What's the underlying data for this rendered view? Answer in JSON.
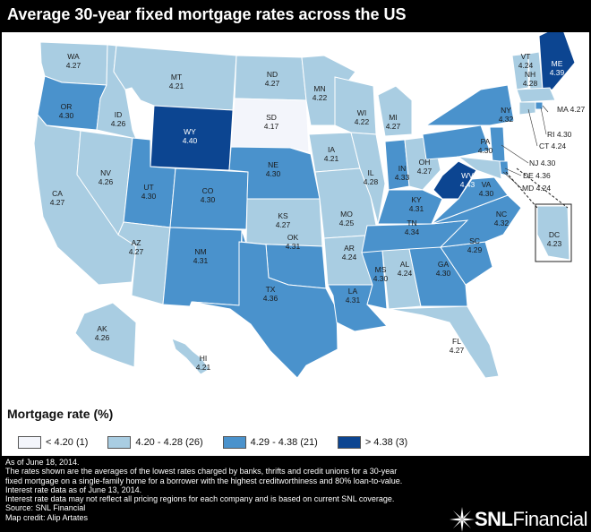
{
  "header": {
    "title": "Average 30-year fixed mortgage rates across the US"
  },
  "colors": {
    "band1": "#f3f5fb",
    "band2": "#a9cde2",
    "band3": "#4a92cc",
    "band4": "#0c4591",
    "state_border": "#ffffff",
    "background": "#000000"
  },
  "states": [
    {
      "abbr": "WA",
      "rate": "4.27",
      "band": 2
    },
    {
      "abbr": "OR",
      "rate": "4.30",
      "band": 3
    },
    {
      "abbr": "CA",
      "rate": "4.27",
      "band": 2
    },
    {
      "abbr": "NV",
      "rate": "4.26",
      "band": 2
    },
    {
      "abbr": "ID",
      "rate": "4.26",
      "band": 2
    },
    {
      "abbr": "MT",
      "rate": "4.21",
      "band": 2
    },
    {
      "abbr": "WY",
      "rate": "4.40",
      "band": 4
    },
    {
      "abbr": "UT",
      "rate": "4.30",
      "band": 3
    },
    {
      "abbr": "AZ",
      "rate": "4.27",
      "band": 2
    },
    {
      "abbr": "CO",
      "rate": "4.30",
      "band": 3
    },
    {
      "abbr": "NM",
      "rate": "4.31",
      "band": 3
    },
    {
      "abbr": "ND",
      "rate": "4.27",
      "band": 2
    },
    {
      "abbr": "SD",
      "rate": "4.17",
      "band": 1
    },
    {
      "abbr": "NE",
      "rate": "4.30",
      "band": 3
    },
    {
      "abbr": "KS",
      "rate": "4.27",
      "band": 2
    },
    {
      "abbr": "OK",
      "rate": "4.31",
      "band": 3
    },
    {
      "abbr": "TX",
      "rate": "4.36",
      "band": 3
    },
    {
      "abbr": "MN",
      "rate": "4.22",
      "band": 2
    },
    {
      "abbr": "IA",
      "rate": "4.21",
      "band": 2
    },
    {
      "abbr": "MO",
      "rate": "4.25",
      "band": 2
    },
    {
      "abbr": "AR",
      "rate": "4.24",
      "band": 2
    },
    {
      "abbr": "LA",
      "rate": "4.31",
      "band": 3
    },
    {
      "abbr": "WI",
      "rate": "4.22",
      "band": 2
    },
    {
      "abbr": "IL",
      "rate": "4.28",
      "band": 2
    },
    {
      "abbr": "MI",
      "rate": "4.27",
      "band": 2
    },
    {
      "abbr": "IN",
      "rate": "4.33",
      "band": 3
    },
    {
      "abbr": "OH",
      "rate": "4.27",
      "band": 2
    },
    {
      "abbr": "KY",
      "rate": "4.31",
      "band": 3
    },
    {
      "abbr": "TN",
      "rate": "4.34",
      "band": 3
    },
    {
      "abbr": "MS",
      "rate": "4.30",
      "band": 3
    },
    {
      "abbr": "AL",
      "rate": "4.24",
      "band": 2
    },
    {
      "abbr": "GA",
      "rate": "4.30",
      "band": 3
    },
    {
      "abbr": "FL",
      "rate": "4.27",
      "band": 2
    },
    {
      "abbr": "SC",
      "rate": "4.29",
      "band": 3
    },
    {
      "abbr": "NC",
      "rate": "4.32",
      "band": 3
    },
    {
      "abbr": "VA",
      "rate": "4.30",
      "band": 3
    },
    {
      "abbr": "WV",
      "rate": "4.43",
      "band": 4
    },
    {
      "abbr": "PA",
      "rate": "4.30",
      "band": 3
    },
    {
      "abbr": "NY",
      "rate": "4.32",
      "band": 3
    },
    {
      "abbr": "VT",
      "rate": "4.24",
      "band": 2
    },
    {
      "abbr": "NH",
      "rate": "4.28",
      "band": 2
    },
    {
      "abbr": "ME",
      "rate": "4.39",
      "band": 4
    },
    {
      "abbr": "MA",
      "rate": "4.27",
      "band": 2
    },
    {
      "abbr": "RI",
      "rate": "4.30",
      "band": 3
    },
    {
      "abbr": "CT",
      "rate": "4.24",
      "band": 2
    },
    {
      "abbr": "NJ",
      "rate": "4.30",
      "band": 3
    },
    {
      "abbr": "DE",
      "rate": "4.36",
      "band": 3
    },
    {
      "abbr": "MD",
      "rate": "4.24",
      "band": 2
    },
    {
      "abbr": "DC",
      "rate": "4.23",
      "band": 2
    },
    {
      "abbr": "AK",
      "rate": "4.26",
      "band": 2
    },
    {
      "abbr": "HI",
      "rate": "4.21",
      "band": 2
    }
  ],
  "legend": {
    "title": "Mortgage rate (%)",
    "items": [
      {
        "label": "< 4.20 (1)",
        "band": 1
      },
      {
        "label": "4.20 - 4.28 (26)",
        "band": 2
      },
      {
        "label": "4.29 - 4.38 (21)",
        "band": 3
      },
      {
        "label": "> 4.38 (3)",
        "band": 4
      }
    ]
  },
  "footer": {
    "lines": [
      "As of June 18, 2014.",
      "The rates shown are the averages of the lowest rates charged by banks, thrifts and credit unions for a 30-year",
      "fixed mortgage on a single-family home for a borrower with the highest creditworthiness and 80% loan-to-value.",
      "Interest rate data as of June 13, 2014.",
      "Interest rate data may not reflect all pricing regions for each company and is based on current SNL coverage.",
      "Source: SNL Financial",
      "Map credit: Alip Artates"
    ]
  },
  "brand": {
    "name_bold": "SNL",
    "name_regular": "Financial",
    "icon": "snl-starburst-icon"
  }
}
